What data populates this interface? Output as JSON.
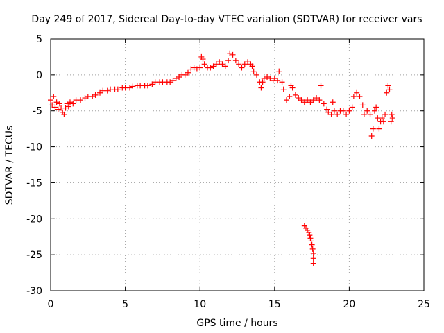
{
  "chart_data": {
    "type": "scatter",
    "title": "Day 249 of 2017, Sidereal Day-to-day VTEC variation (SDTVAR) for receiver vars",
    "xlabel": "GPS time / hours",
    "ylabel": "SDTVAR / TECUs",
    "xlim": [
      0,
      25
    ],
    "ylim": [
      -30,
      5
    ],
    "xticks": [
      0,
      5,
      10,
      15,
      20,
      25
    ],
    "yticks": [
      5,
      0,
      -5,
      -10,
      -15,
      -20,
      -25,
      -30
    ],
    "grid": true,
    "marker": "+",
    "series": [
      {
        "name": "vars",
        "color": "#ff0000",
        "points": [
          [
            0.0,
            -3.5
          ],
          [
            0.1,
            -4.2
          ],
          [
            0.2,
            -3.0
          ],
          [
            0.3,
            -4.5
          ],
          [
            0.4,
            -3.8
          ],
          [
            0.5,
            -4.8
          ],
          [
            0.6,
            -4.0
          ],
          [
            0.7,
            -4.6
          ],
          [
            0.8,
            -5.2
          ],
          [
            0.9,
            -5.5
          ],
          [
            1.0,
            -4.6
          ],
          [
            1.1,
            -4.0
          ],
          [
            1.2,
            -4.4
          ],
          [
            1.3,
            -3.8
          ],
          [
            1.5,
            -4.0
          ],
          [
            1.7,
            -3.5
          ],
          [
            2.0,
            -3.5
          ],
          [
            2.3,
            -3.2
          ],
          [
            2.5,
            -3.0
          ],
          [
            2.8,
            -3.0
          ],
          [
            3.0,
            -2.8
          ],
          [
            3.3,
            -2.5
          ],
          [
            3.5,
            -2.2
          ],
          [
            3.8,
            -2.2
          ],
          [
            4.0,
            -2.0
          ],
          [
            4.3,
            -2.0
          ],
          [
            4.5,
            -2.0
          ],
          [
            4.8,
            -1.8
          ],
          [
            5.0,
            -1.8
          ],
          [
            5.3,
            -1.8
          ],
          [
            5.5,
            -1.6
          ],
          [
            5.8,
            -1.5
          ],
          [
            6.0,
            -1.5
          ],
          [
            6.3,
            -1.5
          ],
          [
            6.5,
            -1.5
          ],
          [
            6.8,
            -1.3
          ],
          [
            7.0,
            -1.0
          ],
          [
            7.3,
            -1.0
          ],
          [
            7.5,
            -1.0
          ],
          [
            7.8,
            -1.0
          ],
          [
            8.0,
            -1.0
          ],
          [
            8.2,
            -0.8
          ],
          [
            8.4,
            -0.5
          ],
          [
            8.6,
            -0.3
          ],
          [
            8.8,
            0.0
          ],
          [
            9.0,
            0.0
          ],
          [
            9.2,
            0.3
          ],
          [
            9.4,
            0.8
          ],
          [
            9.6,
            1.0
          ],
          [
            9.8,
            0.8
          ],
          [
            10.0,
            1.0
          ],
          [
            10.1,
            2.5
          ],
          [
            10.2,
            2.2
          ],
          [
            10.3,
            1.5
          ],
          [
            10.5,
            1.0
          ],
          [
            10.7,
            1.0
          ],
          [
            10.9,
            1.2
          ],
          [
            11.1,
            1.5
          ],
          [
            11.3,
            1.8
          ],
          [
            11.5,
            1.5
          ],
          [
            11.7,
            1.2
          ],
          [
            11.9,
            2.0
          ],
          [
            12.0,
            3.0
          ],
          [
            12.2,
            2.8
          ],
          [
            12.4,
            2.0
          ],
          [
            12.6,
            1.5
          ],
          [
            12.8,
            1.0
          ],
          [
            13.0,
            1.5
          ],
          [
            13.2,
            1.8
          ],
          [
            13.4,
            1.5
          ],
          [
            13.5,
            1.2
          ],
          [
            13.6,
            0.5
          ],
          [
            13.8,
            0.0
          ],
          [
            14.0,
            -1.0
          ],
          [
            14.1,
            -1.8
          ],
          [
            14.2,
            -1.0
          ],
          [
            14.3,
            -0.5
          ],
          [
            14.5,
            -0.3
          ],
          [
            14.7,
            -0.5
          ],
          [
            14.9,
            -0.8
          ],
          [
            15.0,
            -0.5
          ],
          [
            15.2,
            -0.8
          ],
          [
            15.3,
            0.5
          ],
          [
            15.5,
            -1.0
          ],
          [
            15.6,
            -2.0
          ],
          [
            15.8,
            -3.5
          ],
          [
            16.0,
            -3.0
          ],
          [
            16.1,
            -1.5
          ],
          [
            16.2,
            -1.8
          ],
          [
            16.4,
            -2.8
          ],
          [
            16.6,
            -3.2
          ],
          [
            16.8,
            -3.5
          ],
          [
            17.0,
            -3.8
          ],
          [
            17.2,
            -3.5
          ],
          [
            17.4,
            -3.8
          ],
          [
            17.6,
            -3.5
          ],
          [
            17.8,
            -3.2
          ],
          [
            18.0,
            -3.5
          ],
          [
            18.1,
            -1.5
          ],
          [
            18.3,
            -4.0
          ],
          [
            18.5,
            -4.8
          ],
          [
            18.6,
            -5.2
          ],
          [
            18.8,
            -5.5
          ],
          [
            18.9,
            -3.8
          ],
          [
            19.0,
            -5.0
          ],
          [
            19.2,
            -5.5
          ],
          [
            19.4,
            -5.0
          ],
          [
            19.6,
            -5.0
          ],
          [
            19.8,
            -5.5
          ],
          [
            20.0,
            -5.0
          ],
          [
            20.2,
            -4.5
          ],
          [
            20.3,
            -3.0
          ],
          [
            20.5,
            -2.5
          ],
          [
            20.7,
            -3.0
          ],
          [
            20.9,
            -4.2
          ],
          [
            21.0,
            -5.5
          ],
          [
            21.2,
            -5.0
          ],
          [
            21.4,
            -5.5
          ],
          [
            21.5,
            -8.5
          ],
          [
            21.6,
            -7.5
          ],
          [
            21.7,
            -5.0
          ],
          [
            21.8,
            -4.5
          ],
          [
            21.9,
            -6.0
          ],
          [
            22.0,
            -7.5
          ],
          [
            22.1,
            -6.5
          ],
          [
            22.2,
            -6.0
          ],
          [
            22.3,
            -6.5
          ],
          [
            22.4,
            -5.5
          ],
          [
            22.5,
            -2.5
          ],
          [
            22.6,
            -1.5
          ],
          [
            22.7,
            -2.0
          ],
          [
            22.8,
            -6.5
          ],
          [
            22.85,
            -5.5
          ],
          [
            22.9,
            -6.0
          ],
          [
            17.0,
            -21.0
          ],
          [
            17.1,
            -21.3
          ],
          [
            17.2,
            -21.6
          ],
          [
            17.3,
            -21.9
          ],
          [
            17.35,
            -22.3
          ],
          [
            17.4,
            -22.7
          ],
          [
            17.45,
            -23.1
          ],
          [
            17.5,
            -23.6
          ],
          [
            17.55,
            -24.2
          ],
          [
            17.6,
            -24.8
          ],
          [
            17.6,
            -25.5
          ],
          [
            17.6,
            -26.2
          ]
        ]
      }
    ]
  }
}
